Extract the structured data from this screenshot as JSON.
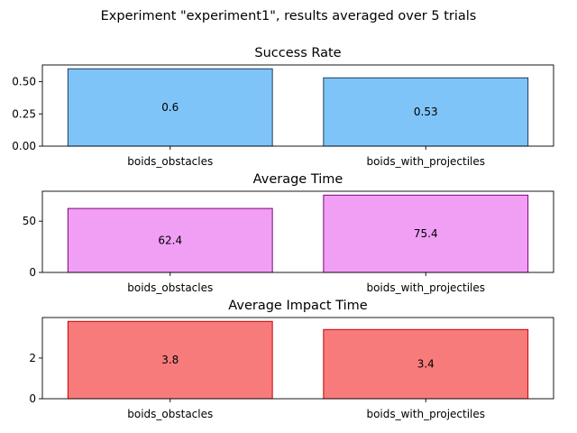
{
  "figure": {
    "suptitle": "Experiment \"experiment1\", results averaged over 5 trials"
  },
  "chart_data": [
    {
      "type": "bar",
      "title": "Success Rate",
      "categories": [
        "boids_obstacles",
        "boids_with_projectiles"
      ],
      "values": [
        0.6,
        0.53
      ],
      "value_labels": [
        "0.6",
        "0.53"
      ],
      "ylim": [
        0,
        0.63
      ],
      "yticks": [
        0.0,
        0.25,
        0.5
      ],
      "ytick_labels": [
        "0.00",
        "0.25",
        "0.50"
      ],
      "xlabel": "",
      "ylabel": "",
      "grid": false,
      "colors": {
        "fill": "#7fc4f8",
        "edge": "#1d3c5a"
      }
    },
    {
      "type": "bar",
      "title": "Average Time",
      "categories": [
        "boids_obstacles",
        "boids_with_projectiles"
      ],
      "values": [
        62.4,
        75.4
      ],
      "value_labels": [
        "62.4",
        "75.4"
      ],
      "ylim": [
        0,
        79.2
      ],
      "yticks": [
        0,
        50
      ],
      "ytick_labels": [
        "0",
        "50"
      ],
      "xlabel": "",
      "ylabel": "",
      "grid": false,
      "colors": {
        "fill": "#f09ff4",
        "edge": "#800080"
      }
    },
    {
      "type": "bar",
      "title": "Average Impact Time",
      "categories": [
        "boids_obstacles",
        "boids_with_projectiles"
      ],
      "values": [
        3.8,
        3.4
      ],
      "value_labels": [
        "3.8",
        "3.4"
      ],
      "ylim": [
        0,
        3.99
      ],
      "yticks": [
        0,
        2
      ],
      "ytick_labels": [
        "0",
        "2"
      ],
      "xlabel": "",
      "ylabel": "",
      "grid": false,
      "colors": {
        "fill": "#f87b7b",
        "edge": "#cc0000"
      }
    }
  ]
}
